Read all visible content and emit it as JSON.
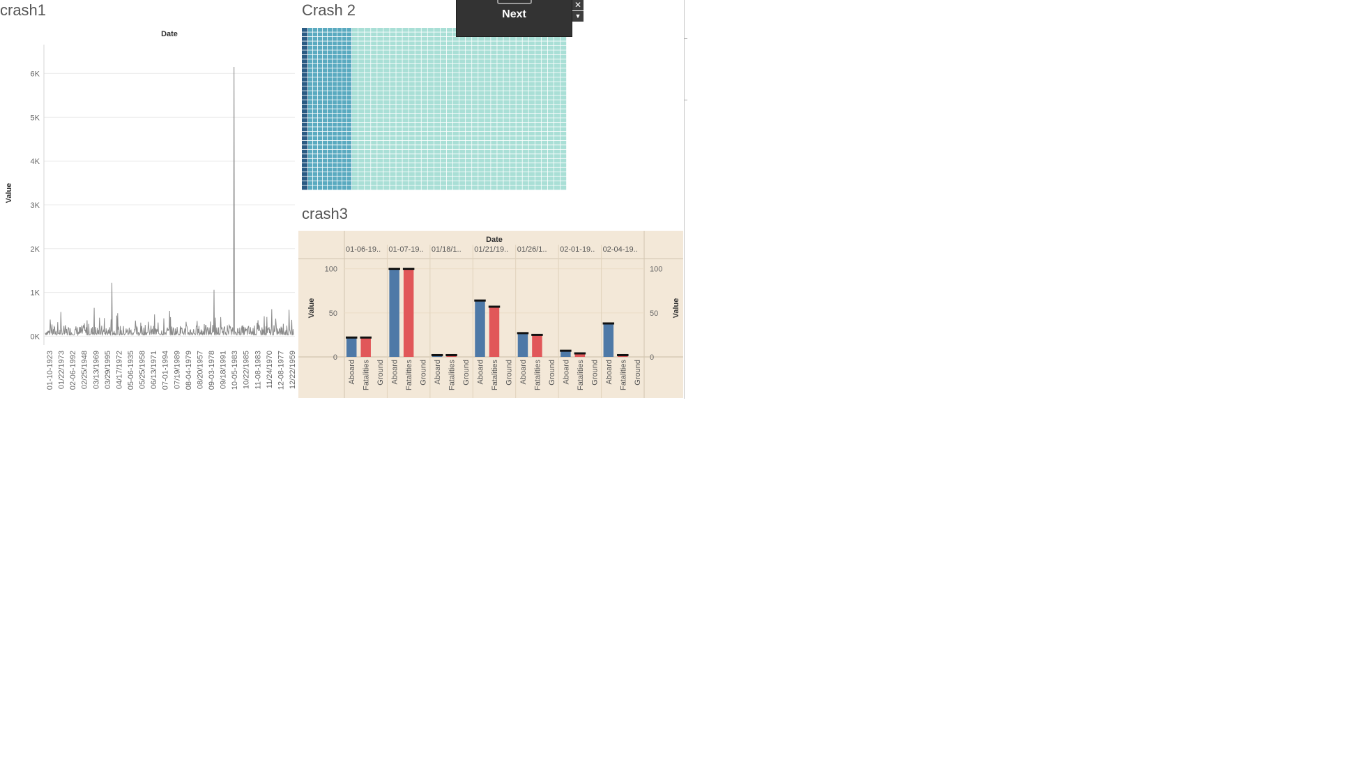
{
  "sheets": {
    "crash1_title": "crash1",
    "crash2_title": "Crash 2",
    "crash3_title": "crash3"
  },
  "popup": {
    "next_label": "Next",
    "close_glyph": "✕",
    "menu_glyph": "▼"
  },
  "colors": {
    "line": "#8a8a8a",
    "aboard": "#4e79a7",
    "fatalities": "#e15759",
    "crash3_bg": "#f3e8d8",
    "treemap_dark": "#2b5b84",
    "treemap_mid": "#5aaac0",
    "treemap_light": "#a9dfd6"
  },
  "chart_data": [
    {
      "id": "crash1",
      "type": "line",
      "title": "crash1",
      "xlabel": "Date",
      "ylabel": "Value",
      "ylim": [
        -200,
        6500
      ],
      "yticks": [
        0,
        1000,
        2000,
        3000,
        4000,
        5000,
        6000
      ],
      "ytick_labels": [
        "0K",
        "1K",
        "2K",
        "3K",
        "4K",
        "5K",
        "6K"
      ],
      "x_tick_labels": [
        "01-10-1923",
        "01/22/1973",
        "02-06-1992",
        "02/25/1948",
        "03/13/1969",
        "03/29/1995",
        "04/17/1972",
        "05-06-1935",
        "05/25/1958",
        "06/13/1971",
        "07-01-1994",
        "07/19/1989",
        "08-04-1979",
        "08/20/1957",
        "09-03-1978",
        "09/18/1991",
        "10-05-1983",
        "10/22/1985",
        "11-08-1983",
        "11/24/1970",
        "12-08-1977",
        "12/22/1959"
      ],
      "point_count": 560,
      "baseline_range": [
        30,
        260
      ],
      "spikes": [
        {
          "index": 150,
          "value": 1220
        },
        {
          "index": 380,
          "value": 1060
        },
        {
          "index": 425,
          "value": 6150
        },
        {
          "index": 110,
          "value": 650
        },
        {
          "index": 280,
          "value": 580
        },
        {
          "index": 510,
          "value": 620
        }
      ],
      "grid": true
    },
    {
      "id": "crash2",
      "type": "heatmap",
      "title": "Crash 2",
      "columns": 44,
      "rows": 36,
      "dark_columns": 1,
      "mid_columns": 10
    },
    {
      "id": "crash3",
      "type": "bar",
      "title": "crash3",
      "xlabel": "Date",
      "ylabel": "Value",
      "ylabel_right": "Value",
      "ylim": [
        0,
        110
      ],
      "yticks": [
        0,
        50,
        100
      ],
      "categories": [
        "01-06-19..",
        "01-07-19..",
        "01/18/1..",
        "01/21/19..",
        "01/26/1..",
        "02-01-19..",
        "02-04-19.."
      ],
      "subcategories": [
        "Aboard",
        "Fatalities",
        "Ground"
      ],
      "series": [
        {
          "name": "Aboard",
          "values": [
            22,
            100,
            2,
            64,
            27,
            7,
            38
          ]
        },
        {
          "name": "Fatalities",
          "values": [
            22,
            100,
            2,
            57,
            25,
            4,
            2
          ]
        },
        {
          "name": "Ground",
          "values": [
            0,
            0,
            0,
            0,
            0,
            0,
            0
          ]
        }
      ]
    }
  ]
}
